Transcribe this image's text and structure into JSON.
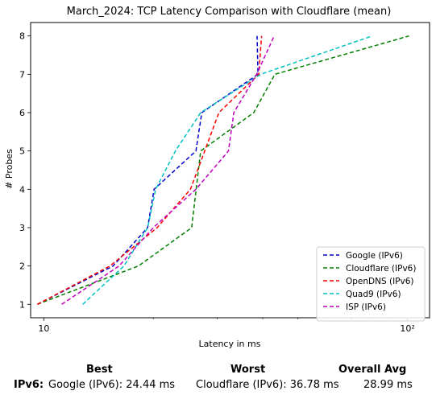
{
  "chart_data": {
    "type": "line",
    "title": "March_2024: TCP Latency Comparison with Cloudflare (mean)",
    "xlabel": "Latency in ms",
    "ylabel": "# Probes",
    "x_scale": "log",
    "xlim": [
      9.2,
      115
    ],
    "ylim": [
      0.65,
      8.35
    ],
    "x_ticks": [
      10,
      100
    ],
    "x_tick_labels": [
      "10",
      "10²"
    ],
    "y_ticks": [
      1,
      2,
      3,
      4,
      5,
      6,
      7,
      8
    ],
    "grid": false,
    "legend_position": "lower-right",
    "series": [
      {
        "name": "Google (IPv6)",
        "color": "#0000cc",
        "points": [
          [
            9.6,
            1
          ],
          [
            15.5,
            2
          ],
          [
            19.3,
            3
          ],
          [
            20.1,
            4
          ],
          [
            26.2,
            5
          ],
          [
            27.2,
            6
          ],
          [
            38.8,
            7
          ],
          [
            38.6,
            8
          ]
        ]
      },
      {
        "name": "Cloudflare (IPv6)",
        "color": "#008000",
        "points": [
          [
            9.6,
            1
          ],
          [
            18.2,
            2
          ],
          [
            25.5,
            3
          ],
          [
            27.0,
            5
          ],
          [
            37.8,
            6
          ],
          [
            43.2,
            7
          ],
          [
            101.0,
            8
          ]
        ]
      },
      {
        "name": "OpenDNS (IPv6)",
        "color": "#ff0000",
        "points": [
          [
            9.6,
            1
          ],
          [
            15.2,
            2
          ],
          [
            20.5,
            3
          ],
          [
            25.3,
            4
          ],
          [
            27.7,
            5
          ],
          [
            30.3,
            6
          ],
          [
            39.0,
            7
          ],
          [
            39.7,
            8
          ]
        ]
      },
      {
        "name": "Quad9 (IPv6)",
        "color": "#00bfbf",
        "points": [
          [
            12.8,
            1
          ],
          [
            16.6,
            2
          ],
          [
            19.3,
            3
          ],
          [
            20.3,
            4
          ],
          [
            23.0,
            5
          ],
          [
            27.0,
            6
          ],
          [
            39.5,
            7
          ],
          [
            80.0,
            8
          ]
        ]
      },
      {
        "name": "ISP (IPv6)",
        "color": "#bf00bf",
        "points": [
          [
            11.2,
            1
          ],
          [
            16.1,
            2
          ],
          [
            20.0,
            3
          ],
          [
            26.2,
            4
          ],
          [
            32.2,
            5
          ],
          [
            33.3,
            6
          ],
          [
            38.5,
            7
          ],
          [
            43.0,
            8
          ]
        ]
      }
    ]
  },
  "summary": {
    "headers": {
      "best": "Best",
      "worst": "Worst",
      "avg": "Overall Avg"
    },
    "row_label": "IPv6:",
    "best_value": "Google (IPv6): 24.44 ms",
    "worst_value": "Cloudflare (IPv6): 36.78 ms",
    "avg_value": "28.99 ms"
  }
}
